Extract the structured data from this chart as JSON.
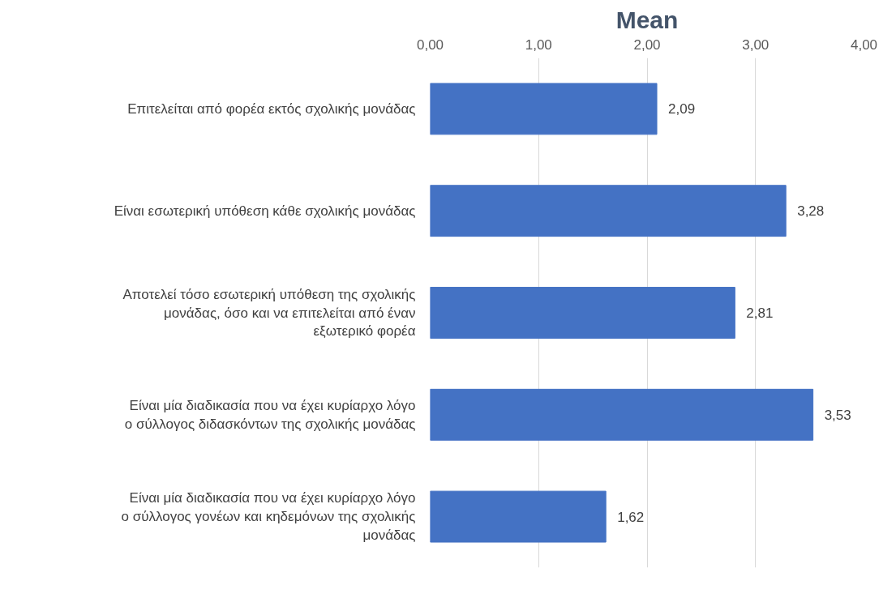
{
  "chart_data": {
    "type": "bar",
    "orientation": "horizontal",
    "title": "Mean",
    "categories": [
      "Επιτελείται από φορέα εκτός σχολικής μονάδας",
      "Είναι εσωτερική υπόθεση κάθε σχολικής μονάδας",
      "Αποτελεί τόσο εσωτερική υπόθεση της σχολικής μονάδας, όσο και να επιτελείται από έναν εξωτερικό φορέα",
      "Είναι μία διαδικασία που να έχει κυρίαρχο λόγο ο σύλλογος διδασκόντων της σχολικής μονάδας",
      "Είναι μία διαδικασία που να έχει κυρίαρχο λόγο ο σύλλογος γονέων και κηδεμόνων της σχολικής μονάδας"
    ],
    "values": [
      2.09,
      3.28,
      2.81,
      3.53,
      1.62
    ],
    "value_labels": [
      "2,09",
      "3,28",
      "2,81",
      "3,53",
      "1,62"
    ],
    "color": "#4472c4",
    "xlim": [
      0,
      4
    ],
    "xticks": [
      {
        "value": 0,
        "label": "0,00"
      },
      {
        "value": 1,
        "label": "1,00"
      },
      {
        "value": 2,
        "label": "2,00"
      },
      {
        "value": 3,
        "label": "3,00"
      },
      {
        "value": 4,
        "label": "4,00"
      }
    ],
    "grid": "x"
  }
}
